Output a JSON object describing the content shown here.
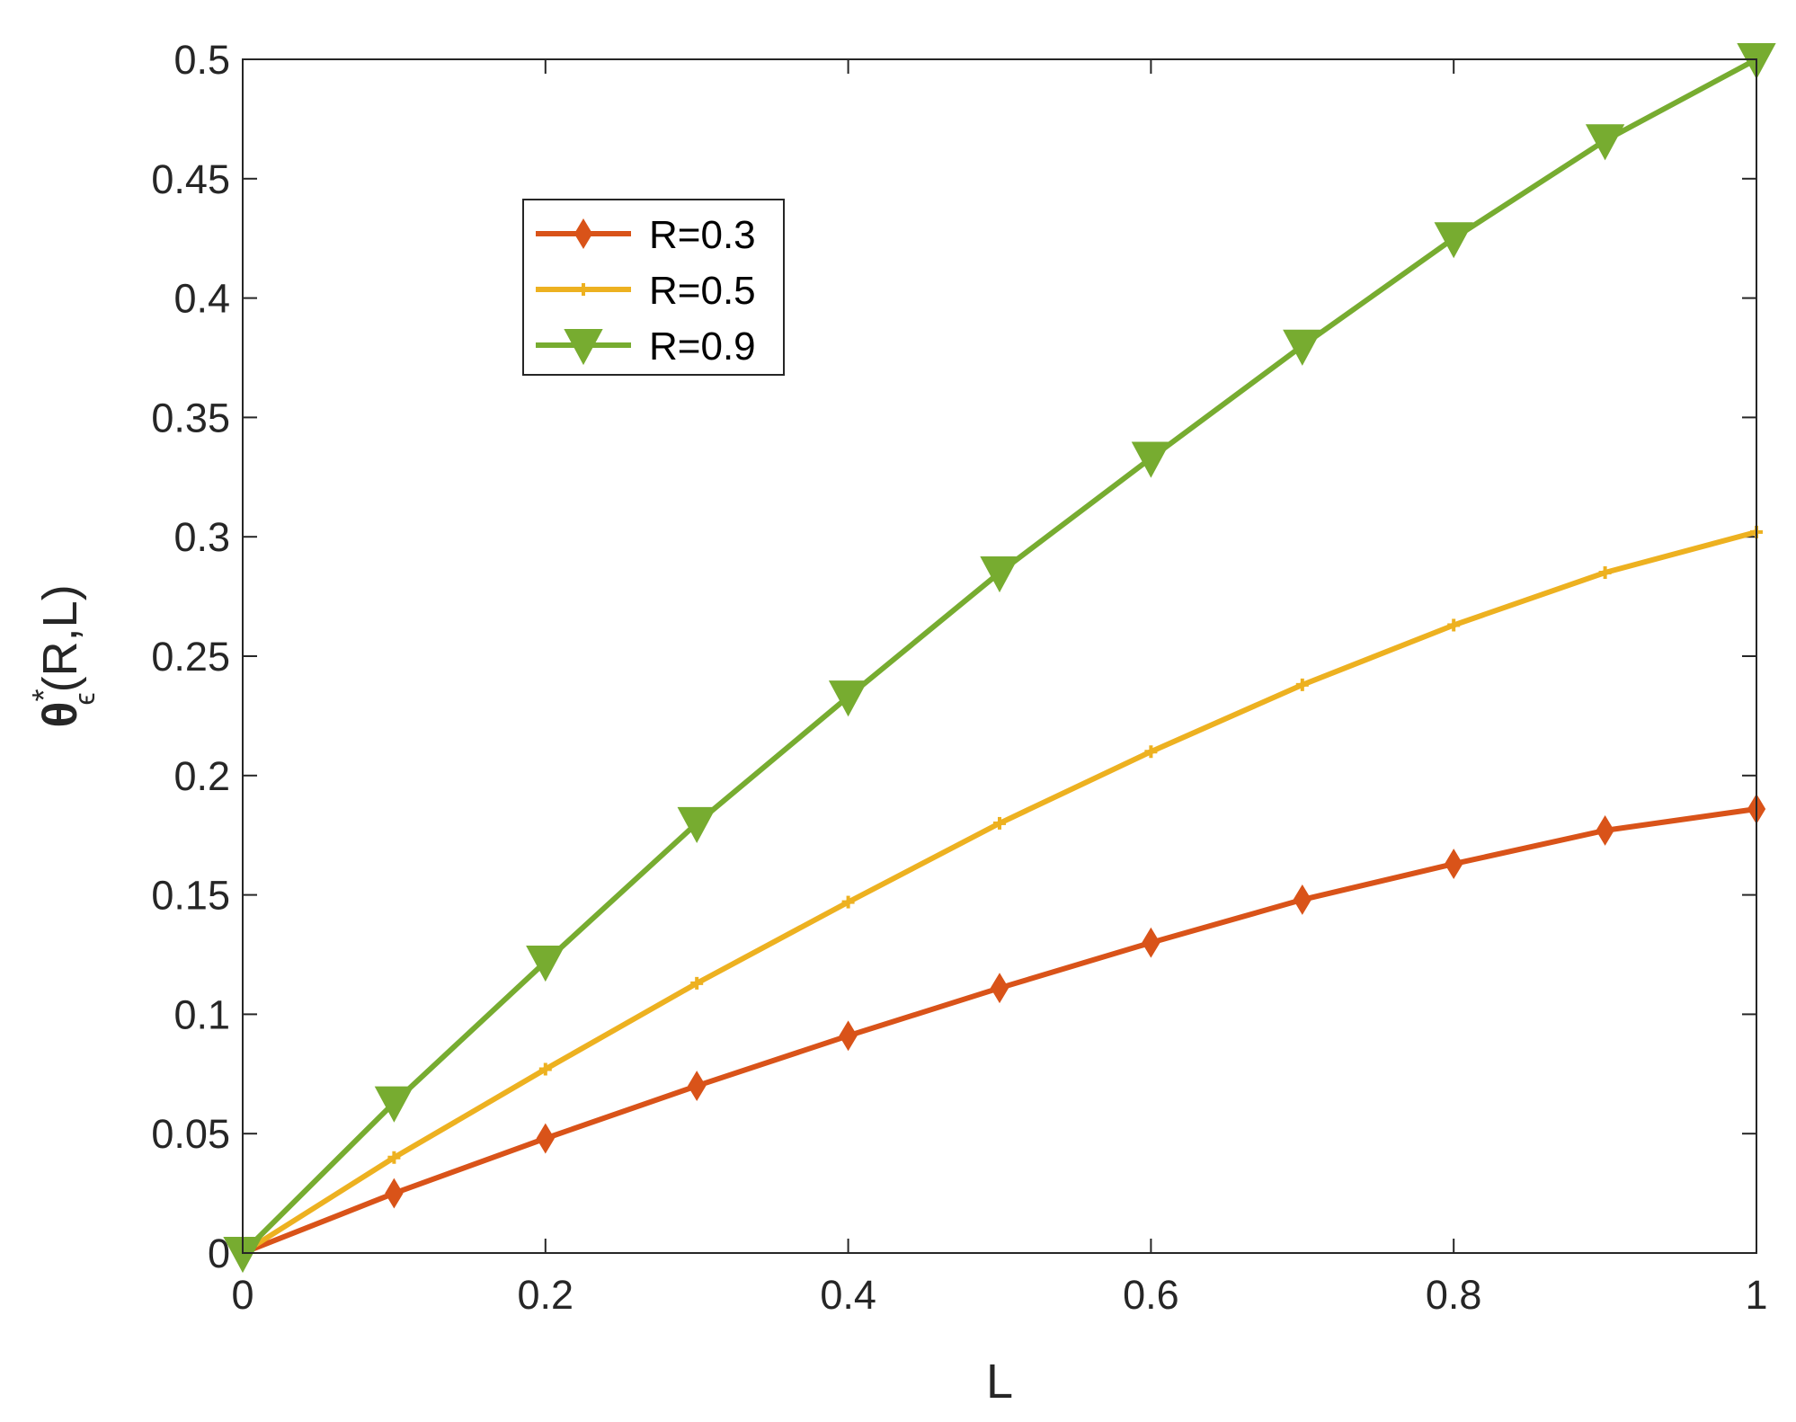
{
  "chart_data": {
    "type": "line",
    "title": "",
    "xlabel": "L",
    "ylabel_parts": {
      "base": "θ",
      "superscript": "*",
      "subscript": "ϵ",
      "args": "(R,L)"
    },
    "xlim": [
      0,
      1
    ],
    "ylim": [
      0,
      0.5
    ],
    "xticks": [
      0,
      0.2,
      0.4,
      0.6,
      0.8,
      1
    ],
    "xtick_labels": [
      "0",
      "0.2",
      "0.4",
      "0.6",
      "0.8",
      "1"
    ],
    "yticks": [
      0,
      0.05,
      0.1,
      0.15,
      0.2,
      0.25,
      0.3,
      0.35,
      0.4,
      0.45,
      0.5
    ],
    "ytick_labels": [
      "0",
      "0.05",
      "0.1",
      "0.15",
      "0.2",
      "0.25",
      "0.3",
      "0.35",
      "0.4",
      "0.45",
      "0.5"
    ],
    "grid": false,
    "legend_position": "upper-left",
    "x": [
      0,
      0.1,
      0.2,
      0.3,
      0.4,
      0.5,
      0.6,
      0.7,
      0.8,
      0.9,
      1.0
    ],
    "series": [
      {
        "name": "R=0.3",
        "color": "#D95319",
        "marker": "diamond",
        "values": [
          0,
          0.025,
          0.048,
          0.07,
          0.091,
          0.111,
          0.13,
          0.148,
          0.163,
          0.177,
          0.186
        ]
      },
      {
        "name": "R=0.5",
        "color": "#EDB120",
        "marker": "plus",
        "values": [
          0,
          0.04,
          0.077,
          0.113,
          0.147,
          0.18,
          0.21,
          0.238,
          0.263,
          0.285,
          0.302
        ]
      },
      {
        "name": "R=0.9",
        "color": "#77AC30",
        "marker": "triangle-down",
        "values": [
          0,
          0.063,
          0.122,
          0.18,
          0.233,
          0.285,
          0.333,
          0.38,
          0.425,
          0.466,
          0.5
        ]
      }
    ]
  }
}
